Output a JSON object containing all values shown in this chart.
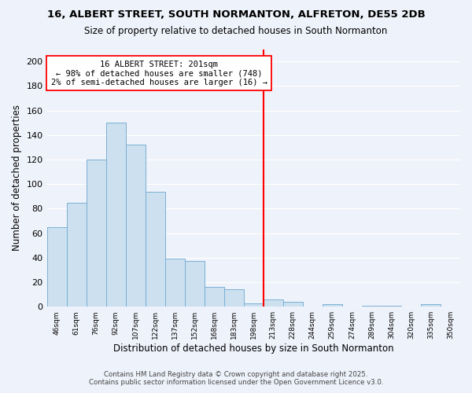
{
  "title1": "16, ALBERT STREET, SOUTH NORMANTON, ALFRETON, DE55 2DB",
  "title2": "Size of property relative to detached houses in South Normanton",
  "xlabel": "Distribution of detached houses by size in South Normanton",
  "ylabel": "Number of detached properties",
  "bin_labels": [
    "46sqm",
    "61sqm",
    "76sqm",
    "92sqm",
    "107sqm",
    "122sqm",
    "137sqm",
    "152sqm",
    "168sqm",
    "183sqm",
    "198sqm",
    "213sqm",
    "228sqm",
    "244sqm",
    "259sqm",
    "274sqm",
    "289sqm",
    "304sqm",
    "320sqm",
    "335sqm",
    "350sqm"
  ],
  "bar_heights": [
    65,
    85,
    120,
    150,
    132,
    94,
    39,
    37,
    16,
    14,
    3,
    6,
    4,
    0,
    2,
    0,
    1,
    1,
    0,
    2,
    0
  ],
  "bar_color": "#cce0f0",
  "bar_edge_color": "#7ab0d4",
  "vline_x": 10.5,
  "vline_color": "red",
  "annotation_title": "16 ALBERT STREET: 201sqm",
  "annotation_line1": "← 98% of detached houses are smaller (748)",
  "annotation_line2": "2% of semi-detached houses are larger (16) →",
  "annotation_box_color": "white",
  "annotation_box_edge": "red",
  "ylim": [
    0,
    210
  ],
  "yticks": [
    0,
    20,
    40,
    60,
    80,
    100,
    120,
    140,
    160,
    180,
    200
  ],
  "footer1": "Contains HM Land Registry data © Crown copyright and database right 2025.",
  "footer2": "Contains public sector information licensed under the Open Government Licence v3.0.",
  "bg_color": "#eef2fa"
}
